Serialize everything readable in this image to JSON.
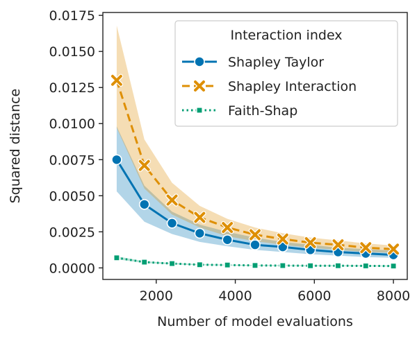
{
  "chart_data": {
    "type": "line",
    "title": "",
    "xlabel": "Number of model evaluations",
    "ylabel": "Squared distance",
    "xlim": [
      650,
      8350
    ],
    "ylim": [
      -0.0008,
      0.0177
    ],
    "xticks": [
      2000,
      4000,
      6000,
      8000
    ],
    "xtick_labels": [
      "2000",
      "4000",
      "6000",
      "8000"
    ],
    "yticks": [
      0.0,
      0.0025,
      0.005,
      0.0075,
      0.01,
      0.0125,
      0.015,
      0.0175
    ],
    "ytick_labels": [
      "0.0000",
      "0.0025",
      "0.0050",
      "0.0075",
      "0.0100",
      "0.0125",
      "0.0150",
      "0.0175"
    ],
    "grid": false,
    "legend": {
      "title": "Interaction index",
      "position": "top-right"
    },
    "x": [
      1000,
      1700,
      2400,
      3100,
      3800,
      4500,
      5200,
      5900,
      6600,
      7300,
      8000
    ],
    "series": [
      {
        "name": "Shapley Taylor",
        "color": "#0173b2",
        "line_style": "solid",
        "marker": "circle",
        "values": [
          0.0075,
          0.0044,
          0.0031,
          0.0024,
          0.00195,
          0.0016,
          0.00145,
          0.00125,
          0.0011,
          0.001,
          0.0009
        ],
        "lower": [
          0.0053,
          0.0032,
          0.00235,
          0.0018,
          0.0015,
          0.00125,
          0.0011,
          0.00095,
          0.00085,
          0.00075,
          0.0007
        ],
        "upper": [
          0.0098,
          0.0057,
          0.0039,
          0.003,
          0.0025,
          0.0021,
          0.0018,
          0.0016,
          0.0014,
          0.0013,
          0.0012
        ]
      },
      {
        "name": "Shapley Interaction",
        "color": "#de8f05",
        "line_style": "dashed",
        "marker": "x",
        "values": [
          0.013,
          0.0071,
          0.0047,
          0.0035,
          0.0028,
          0.0023,
          0.002,
          0.00175,
          0.0016,
          0.0014,
          0.0013
        ],
        "lower": [
          0.0097,
          0.0055,
          0.0037,
          0.0028,
          0.0022,
          0.00185,
          0.0016,
          0.0014,
          0.00125,
          0.0011,
          0.00105
        ],
        "upper": [
          0.0168,
          0.0089,
          0.0059,
          0.0043,
          0.0034,
          0.0028,
          0.0024,
          0.0021,
          0.0019,
          0.0017,
          0.00155
        ]
      },
      {
        "name": "Faith-Shap",
        "color": "#029e73",
        "line_style": "dotted",
        "marker": "square",
        "values": [
          0.0007,
          0.0004,
          0.0003,
          0.00022,
          0.0002,
          0.00017,
          0.00016,
          0.00015,
          0.00015,
          0.00014,
          0.00013
        ],
        "lower": [
          0.0006,
          0.00034,
          0.00025,
          0.00019,
          0.00017,
          0.00014,
          0.00013,
          0.00012,
          0.00012,
          0.00011,
          0.0001
        ],
        "upper": [
          0.0008,
          0.00046,
          0.00035,
          0.00026,
          0.00023,
          0.0002,
          0.00019,
          0.00018,
          0.00018,
          0.00017,
          0.00016
        ]
      }
    ]
  }
}
